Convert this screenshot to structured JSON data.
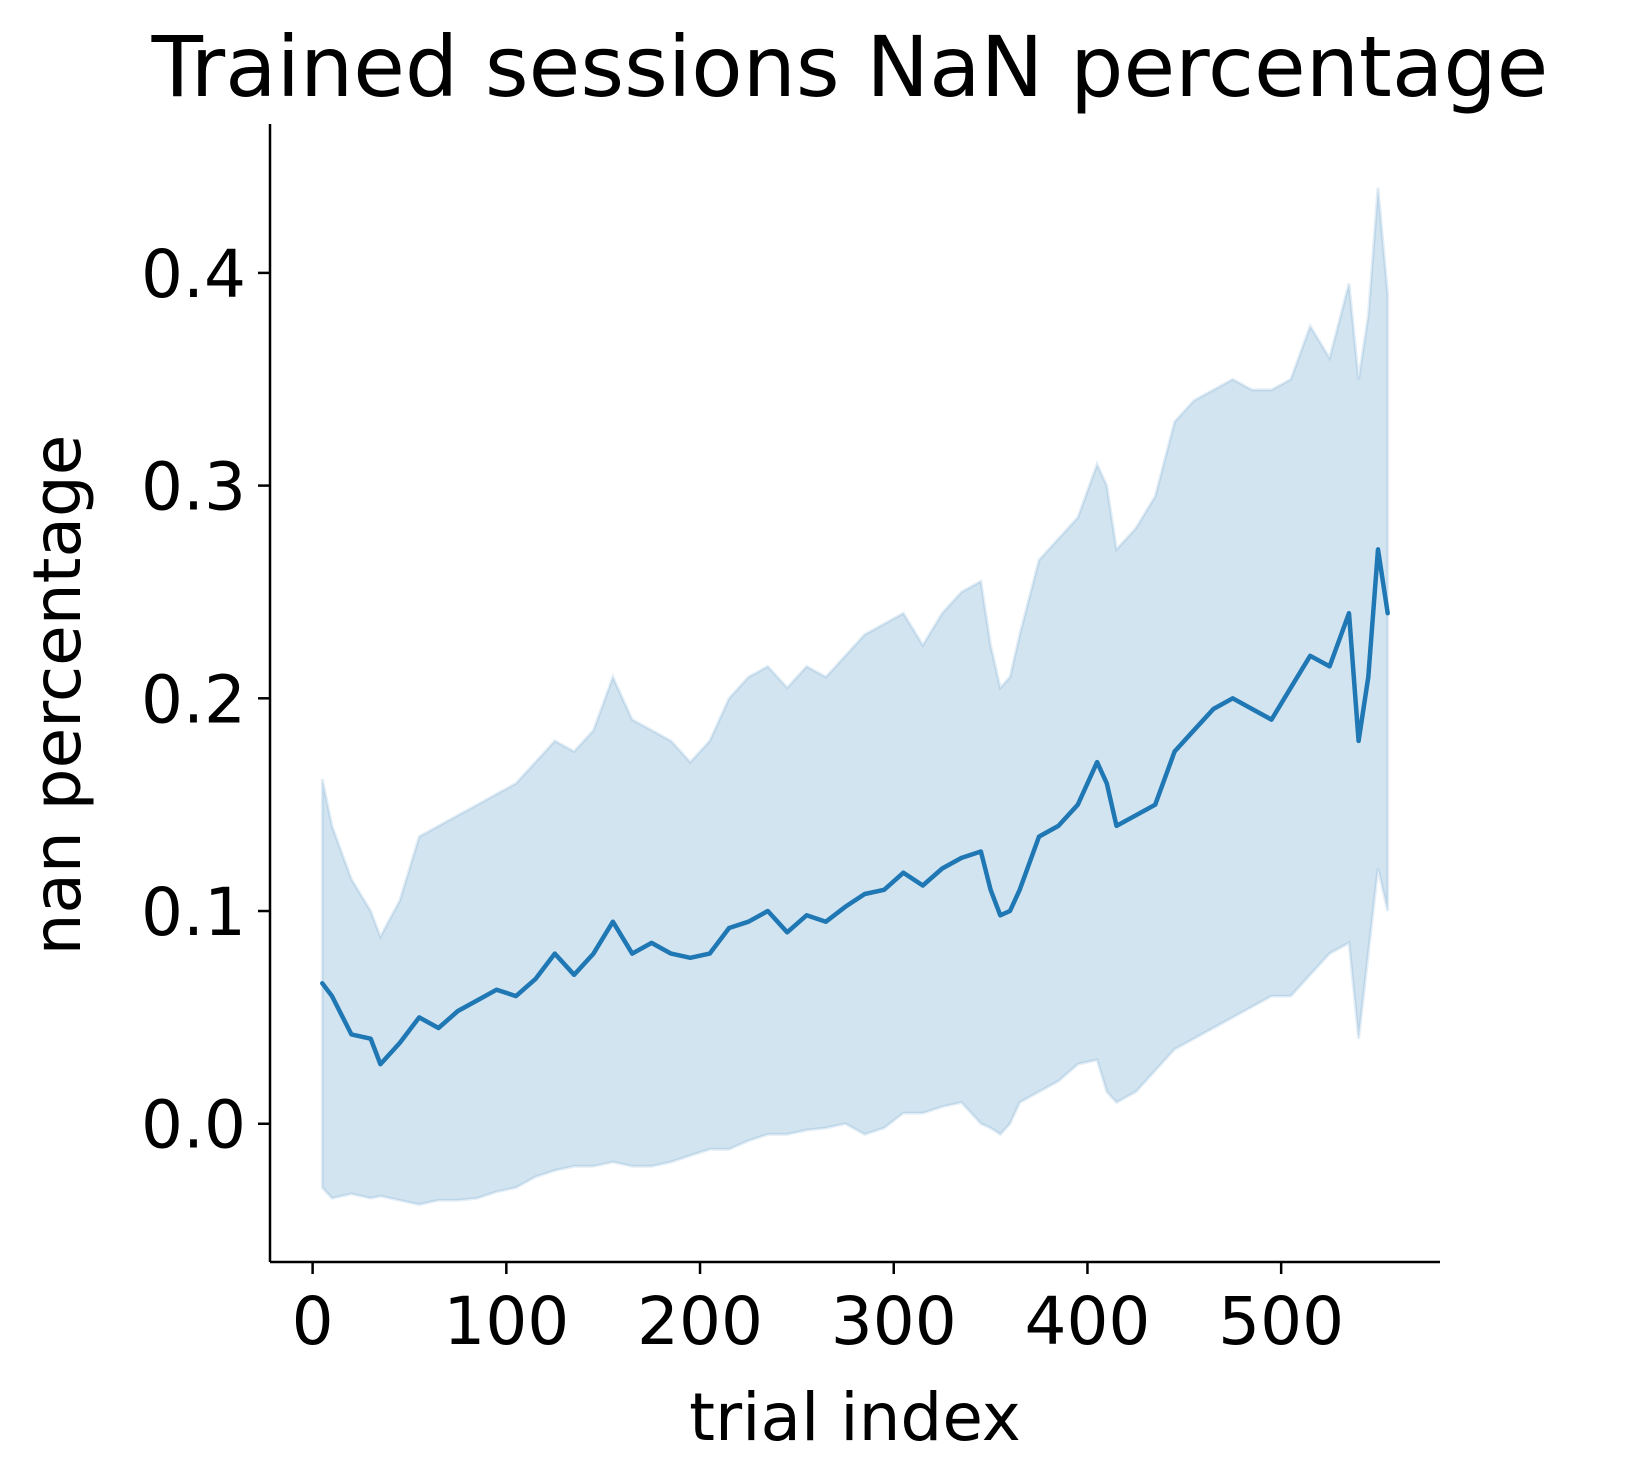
{
  "chart_data": {
    "type": "line",
    "title": "Trained sessions NaN percentage",
    "xlabel": "trial index",
    "ylabel": "nan percentage",
    "xlim": [
      -22,
      582
    ],
    "ylim": [
      -0.065,
      0.47
    ],
    "xticks": [
      {
        "value": 0,
        "label": "0"
      },
      {
        "value": 100,
        "label": "100"
      },
      {
        "value": 200,
        "label": "200"
      },
      {
        "value": 300,
        "label": "300"
      },
      {
        "value": 400,
        "label": "400"
      },
      {
        "value": 500,
        "label": "500"
      }
    ],
    "yticks": [
      {
        "value": 0.0,
        "label": "0.0"
      },
      {
        "value": 0.1,
        "label": "0.1"
      },
      {
        "value": 0.2,
        "label": "0.2"
      },
      {
        "value": 0.3,
        "label": "0.3"
      },
      {
        "value": 0.4,
        "label": "0.4"
      }
    ],
    "grid": false,
    "line_color": "#1f77b4",
    "band_color": "#1f77b4",
    "series": [
      {
        "x": [
          5,
          10,
          20,
          30,
          35,
          45,
          55,
          65,
          75,
          85,
          95,
          105,
          115,
          125,
          135,
          145,
          155,
          165,
          175,
          185,
          195,
          205,
          215,
          225,
          235,
          245,
          255,
          265,
          275,
          285,
          295,
          305,
          315,
          325,
          335,
          345,
          350,
          355,
          360,
          365,
          375,
          385,
          395,
          405,
          410,
          415,
          425,
          435,
          445,
          455,
          465,
          475,
          485,
          495,
          505,
          515,
          525,
          535,
          540,
          545,
          550,
          555
        ],
        "y": [
          0.066,
          0.06,
          0.042,
          0.04,
          0.028,
          0.038,
          0.05,
          0.045,
          0.053,
          0.058,
          0.063,
          0.06,
          0.068,
          0.08,
          0.07,
          0.08,
          0.095,
          0.08,
          0.085,
          0.08,
          0.078,
          0.08,
          0.092,
          0.095,
          0.1,
          0.09,
          0.098,
          0.095,
          0.102,
          0.108,
          0.11,
          0.118,
          0.112,
          0.12,
          0.125,
          0.128,
          0.11,
          0.098,
          0.1,
          0.11,
          0.135,
          0.14,
          0.15,
          0.17,
          0.16,
          0.14,
          0.145,
          0.15,
          0.175,
          0.185,
          0.195,
          0.2,
          0.195,
          0.19,
          0.205,
          0.22,
          0.215,
          0.24,
          0.18,
          0.21,
          0.27,
          0.24
        ],
        "lower": [
          -0.03,
          -0.035,
          -0.033,
          -0.035,
          -0.034,
          -0.036,
          -0.038,
          -0.036,
          -0.036,
          -0.035,
          -0.032,
          -0.03,
          -0.025,
          -0.022,
          -0.02,
          -0.02,
          -0.018,
          -0.02,
          -0.02,
          -0.018,
          -0.015,
          -0.012,
          -0.012,
          -0.008,
          -0.005,
          -0.005,
          -0.003,
          -0.002,
          0.0,
          -0.005,
          -0.002,
          0.005,
          0.005,
          0.008,
          0.01,
          0.0,
          -0.002,
          -0.005,
          0.0,
          0.01,
          0.015,
          0.02,
          0.028,
          0.03,
          0.015,
          0.01,
          0.015,
          0.025,
          0.035,
          0.04,
          0.045,
          0.05,
          0.055,
          0.06,
          0.06,
          0.07,
          0.08,
          0.085,
          0.04,
          0.08,
          0.12,
          0.1
        ],
        "upper": [
          0.162,
          0.14,
          0.115,
          0.1,
          0.088,
          0.105,
          0.135,
          0.14,
          0.145,
          0.15,
          0.155,
          0.16,
          0.17,
          0.18,
          0.175,
          0.185,
          0.21,
          0.19,
          0.185,
          0.18,
          0.17,
          0.18,
          0.2,
          0.21,
          0.215,
          0.205,
          0.215,
          0.21,
          0.22,
          0.23,
          0.235,
          0.24,
          0.225,
          0.24,
          0.25,
          0.255,
          0.225,
          0.205,
          0.21,
          0.23,
          0.265,
          0.275,
          0.285,
          0.31,
          0.3,
          0.27,
          0.28,
          0.295,
          0.33,
          0.34,
          0.345,
          0.35,
          0.345,
          0.345,
          0.35,
          0.375,
          0.36,
          0.395,
          0.35,
          0.38,
          0.44,
          0.39
        ]
      }
    ]
  }
}
